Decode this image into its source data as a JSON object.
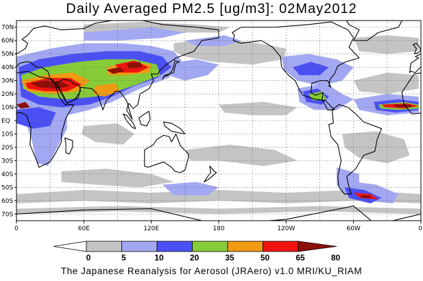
{
  "title": "Daily Averaged PM2.5 [ug/m3]: 02May2012",
  "footer": "The Japanese Reanalysis for Aerosol (JRAero) v1.0 MRI/KU_RIAM",
  "map": {
    "lon_range": [
      0,
      360
    ],
    "lat_range": [
      -75,
      75
    ],
    "lat_ticks": [
      {
        "value": 70,
        "label": "70N"
      },
      {
        "value": 60,
        "label": "60N"
      },
      {
        "value": 50,
        "label": "50N"
      },
      {
        "value": 40,
        "label": "40N"
      },
      {
        "value": 30,
        "label": "30N"
      },
      {
        "value": 20,
        "label": "20N"
      },
      {
        "value": 10,
        "label": "10N"
      },
      {
        "value": 0,
        "label": "EQ"
      },
      {
        "value": -10,
        "label": "10S"
      },
      {
        "value": -20,
        "label": "20S"
      },
      {
        "value": -30,
        "label": "30S"
      },
      {
        "value": -40,
        "label": "40S"
      },
      {
        "value": -50,
        "label": "50S"
      },
      {
        "value": -60,
        "label": "60S"
      },
      {
        "value": -70,
        "label": "70S"
      }
    ],
    "lon_ticks": [
      {
        "value": 0,
        "label": "0"
      },
      {
        "value": 60,
        "label": "60E"
      },
      {
        "value": 120,
        "label": "120E"
      },
      {
        "value": 180,
        "label": "180"
      },
      {
        "value": 240,
        "label": "120W"
      },
      {
        "value": 300,
        "label": "60W"
      },
      {
        "value": 360,
        "label": "0"
      }
    ],
    "grid": true
  },
  "colorbar": {
    "levels": [
      "0",
      "5",
      "10",
      "20",
      "35",
      "50",
      "65",
      "80"
    ],
    "colors": [
      "#ffffff",
      "#c4c4c4",
      "#a3a8f2",
      "#4b50f5",
      "#86cc38",
      "#f09a12",
      "#f01410",
      "#8c1008"
    ]
  }
}
